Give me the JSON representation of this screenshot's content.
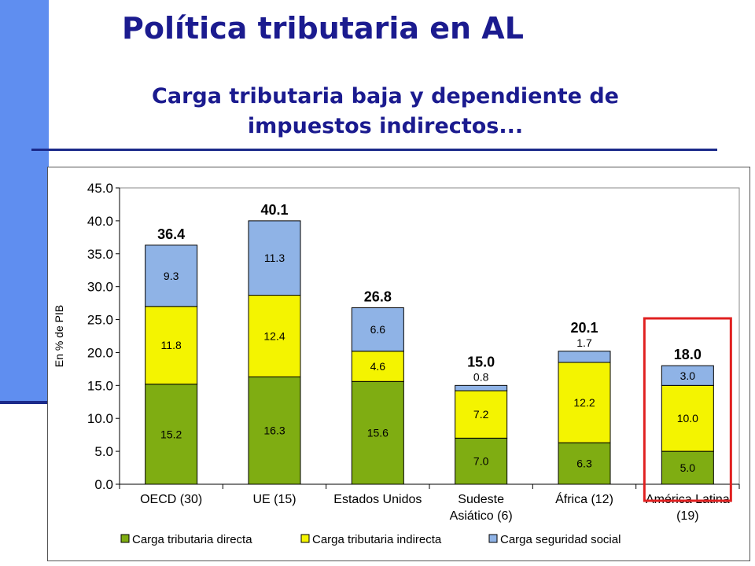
{
  "slide": {
    "title": "Política tributaria en AL",
    "subtitle_line1": "Carga tributaria baja y dependiente de",
    "subtitle_line2": "impuestos indirectos..."
  },
  "chart_data": {
    "type": "bar",
    "stacked": true,
    "categories": [
      [
        "OECD (30)"
      ],
      [
        "UE (15)"
      ],
      [
        "Estados Unidos"
      ],
      [
        "Sudeste",
        "Asiático (6)"
      ],
      [
        "África (12)"
      ],
      [
        "América Latina",
        "(19)"
      ]
    ],
    "series": [
      {
        "name": "Carga tributaria directa",
        "color": "#7fad12",
        "values": [
          15.2,
          16.3,
          15.6,
          7.0,
          6.3,
          5.0
        ],
        "labels": [
          "15.2",
          "16.3",
          "15.6",
          "7.0",
          "6.3",
          "5.0"
        ]
      },
      {
        "name": "Carga tributaria indirecta",
        "color": "#f4f400",
        "values": [
          11.8,
          12.4,
          4.6,
          7.2,
          12.2,
          10.0
        ],
        "labels": [
          "11.8",
          "12.4",
          "4.6",
          "7.2",
          "12.2",
          "10.0"
        ]
      },
      {
        "name": "Carga seguridad social",
        "color": "#8fb3e6",
        "values": [
          9.3,
          11.3,
          6.6,
          0.8,
          1.7,
          3.0
        ],
        "labels": [
          "9.3",
          "11.3",
          "6.6",
          "0.8",
          "1.7",
          "3.0"
        ]
      }
    ],
    "totals": [
      "36.4",
      "40.1",
      "26.8",
      "15.0",
      "20.1",
      "18.0"
    ],
    "outside_labels": [
      false,
      false,
      false,
      true,
      true,
      false
    ],
    "highlight_category": 5,
    "highlight_color": "#e02020",
    "ylabel": "En % de PIB",
    "ylim": [
      0,
      45
    ],
    "yticks": [
      "0.0",
      "5.0",
      "10.0",
      "15.0",
      "20.0",
      "25.0",
      "30.0",
      "35.0",
      "40.0",
      "45.0"
    ],
    "legend_position": "bottom",
    "grid": false
  }
}
